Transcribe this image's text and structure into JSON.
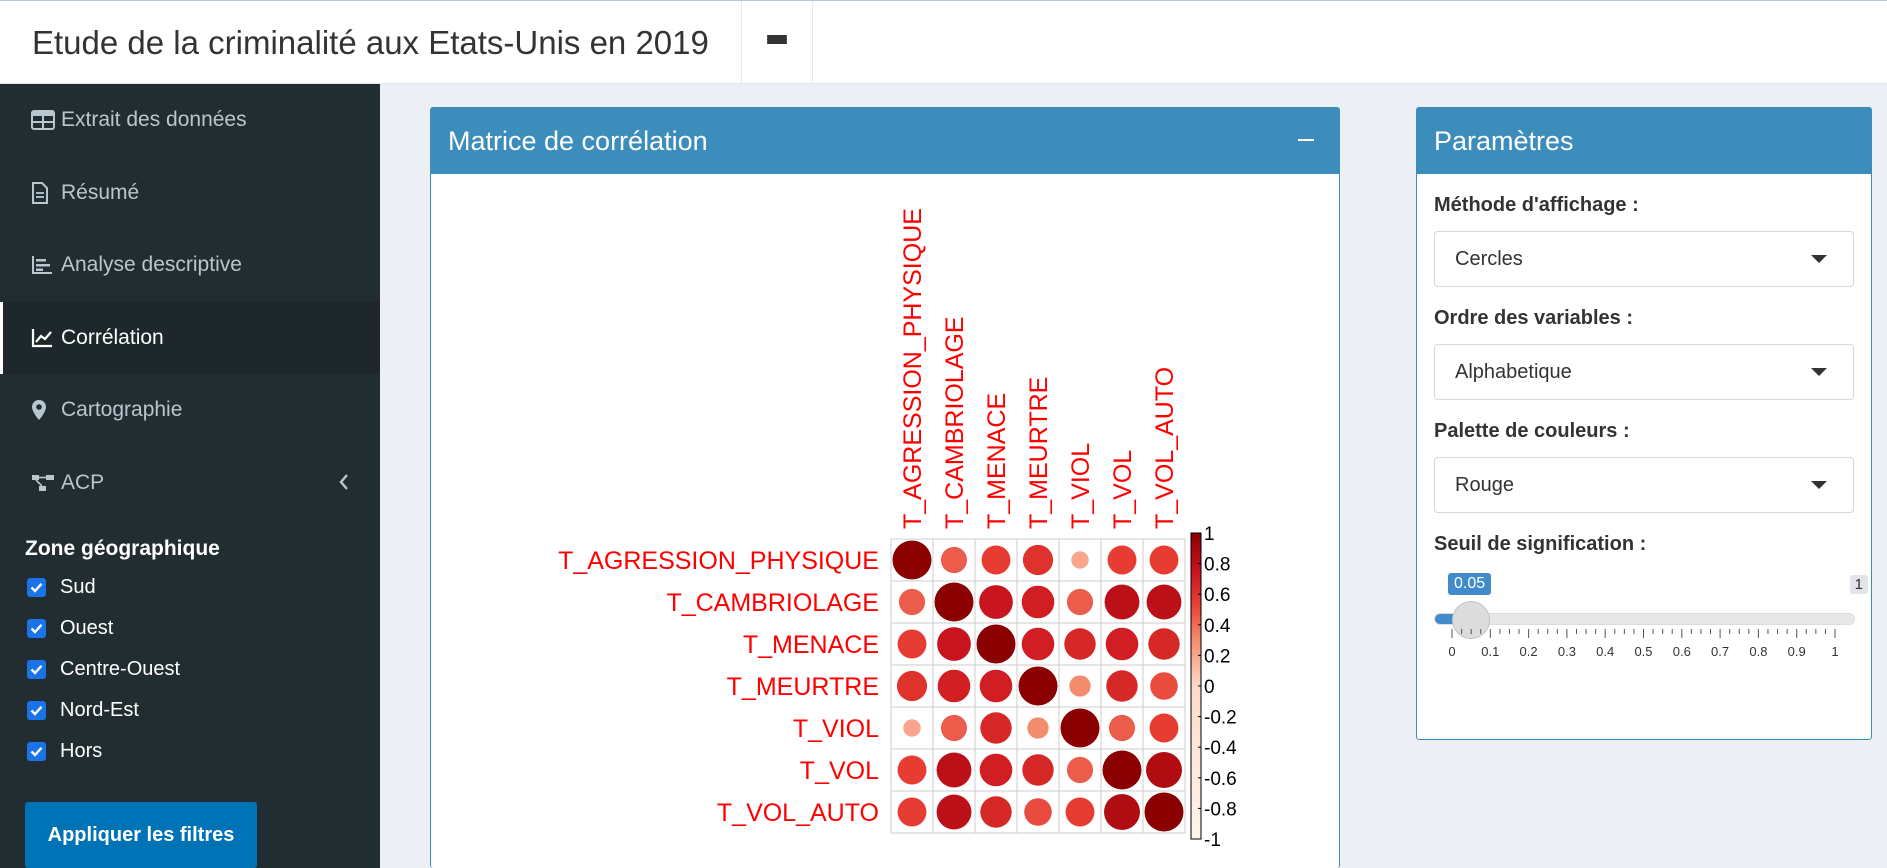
{
  "header": {
    "title": "Etude de la criminalité aux Etats-Unis en 2019",
    "menu_icon": "bars-icon"
  },
  "sidebar": {
    "items": [
      {
        "label": "Extrait des données",
        "icon": "table-icon",
        "active": false
      },
      {
        "label": "Résumé",
        "icon": "file-text-icon",
        "active": false
      },
      {
        "label": "Analyse descriptive",
        "icon": "bar-chart-icon",
        "active": false
      },
      {
        "label": "Corrélation",
        "icon": "line-chart-icon",
        "active": true
      },
      {
        "label": "Cartographie",
        "icon": "map-marker-icon",
        "active": false
      },
      {
        "label": "ACP",
        "icon": "project-diagram-icon",
        "active": false,
        "expandable": true
      }
    ],
    "filters": {
      "title": "Zone géographique",
      "options": [
        {
          "label": "Sud",
          "checked": true
        },
        {
          "label": "Ouest",
          "checked": true
        },
        {
          "label": "Centre-Ouest",
          "checked": true
        },
        {
          "label": "Nord-Est",
          "checked": true
        },
        {
          "label": "Hors",
          "checked": true
        }
      ],
      "apply_label": "Appliquer les filtres"
    }
  },
  "corr_box": {
    "title": "Matrice de corrélation",
    "collapse_icon": "minus-icon"
  },
  "params_box": {
    "title": "Paramètres",
    "display_method": {
      "label": "Méthode d'affichage :",
      "value": "Cercles"
    },
    "variable_order": {
      "label": "Ordre des variables :",
      "value": "Alphabetique"
    },
    "palette": {
      "label": "Palette de couleurs :",
      "value": "Rouge"
    },
    "significance": {
      "label": "Seuil de signification :",
      "value": "0.05",
      "max": "1",
      "min": 0,
      "current": 0.05,
      "tick_labels": [
        "0",
        "0.1",
        "0.2",
        "0.3",
        "0.4",
        "0.5",
        "0.6",
        "0.7",
        "0.8",
        "0.9",
        "1"
      ]
    }
  },
  "colors": {
    "box_header": "#3c8dbc",
    "sidebar_bg": "#222d32",
    "label_red": "#ff0000",
    "dark_red": "#8b0000"
  },
  "chart_data": {
    "type": "heatmap",
    "title": "",
    "variables": [
      "T_AGRESSION_PHYSIQUE",
      "T_CAMBRIOLAGE",
      "T_MENACE",
      "T_MEURTRE",
      "T_VIOL",
      "T_VOL",
      "T_VOL_AUTO"
    ],
    "matrix": [
      [
        1.0,
        0.45,
        0.55,
        0.6,
        0.2,
        0.55,
        0.55
      ],
      [
        0.45,
        1.0,
        0.75,
        0.7,
        0.45,
        0.8,
        0.8
      ],
      [
        0.55,
        0.75,
        1.0,
        0.7,
        0.65,
        0.7,
        0.65
      ],
      [
        0.6,
        0.7,
        0.7,
        1.0,
        0.3,
        0.65,
        0.5
      ],
      [
        0.2,
        0.45,
        0.65,
        0.3,
        1.0,
        0.45,
        0.55
      ],
      [
        0.55,
        0.8,
        0.7,
        0.65,
        0.45,
        1.0,
        0.85
      ],
      [
        0.55,
        0.8,
        0.65,
        0.5,
        0.55,
        0.85,
        1.0
      ]
    ],
    "colorbar_ticks": [
      "1",
      "0.8",
      "0.6",
      "0.4",
      "0.2",
      "0",
      "-0.2",
      "-0.4",
      "-0.6",
      "-0.8",
      "-1"
    ],
    "range": [
      -1,
      1
    ],
    "method": "circle",
    "grid": true
  }
}
